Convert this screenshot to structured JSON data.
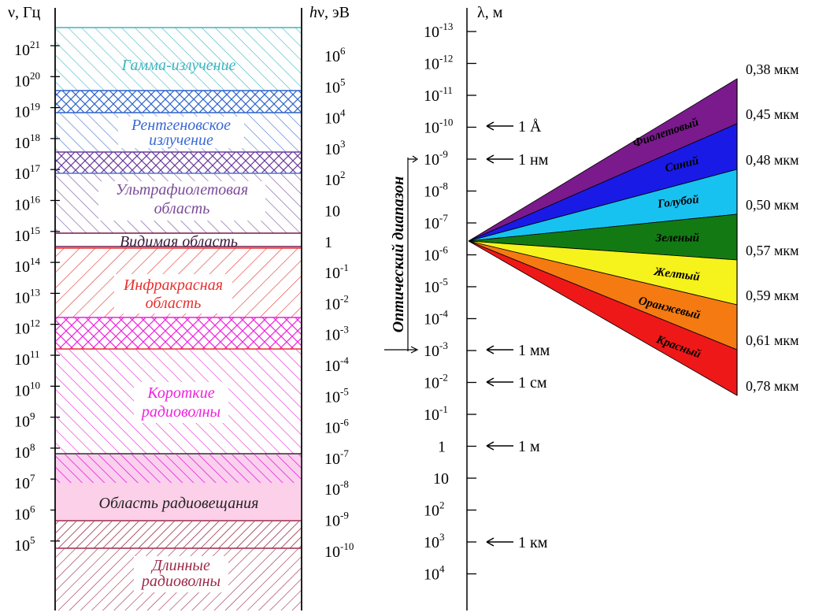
{
  "left_axis": {
    "label": "ν, Гц",
    "ticks": [
      {
        "base": "10",
        "exp": "21"
      },
      {
        "base": "10",
        "exp": "20"
      },
      {
        "base": "10",
        "exp": "19"
      },
      {
        "base": "10",
        "exp": "18"
      },
      {
        "base": "10",
        "exp": "17"
      },
      {
        "base": "10",
        "exp": "16"
      },
      {
        "base": "10",
        "exp": "15"
      },
      {
        "base": "10",
        "exp": "14"
      },
      {
        "base": "10",
        "exp": "13"
      },
      {
        "base": "10",
        "exp": "12"
      },
      {
        "base": "10",
        "exp": "11"
      },
      {
        "base": "10",
        "exp": "10"
      },
      {
        "base": "10",
        "exp": "9"
      },
      {
        "base": "10",
        "exp": "8"
      },
      {
        "base": "10",
        "exp": "7"
      },
      {
        "base": "10",
        "exp": "6"
      },
      {
        "base": "10",
        "exp": "5"
      }
    ]
  },
  "energy_axis": {
    "label_h": "h",
    "label_rest": "ν, эВ",
    "ticks": [
      {
        "base": "10",
        "exp": "6"
      },
      {
        "base": "10",
        "exp": "5"
      },
      {
        "base": "10",
        "exp": "4"
      },
      {
        "base": "10",
        "exp": "3"
      },
      {
        "base": "10",
        "exp": "2"
      },
      {
        "base": "10",
        "exp": ""
      },
      {
        "base": "1",
        "exp": ""
      },
      {
        "base": "10",
        "exp": "-1"
      },
      {
        "base": "10",
        "exp": "-2"
      },
      {
        "base": "10",
        "exp": "-3"
      },
      {
        "base": "10",
        "exp": "-4"
      },
      {
        "base": "10",
        "exp": "-5"
      },
      {
        "base": "10",
        "exp": "-6"
      },
      {
        "base": "10",
        "exp": "-7"
      },
      {
        "base": "10",
        "exp": "-8"
      },
      {
        "base": "10",
        "exp": "-9"
      },
      {
        "base": "10",
        "exp": "-10"
      }
    ]
  },
  "bands": {
    "gamma": [
      "Гамма-излучение"
    ],
    "xray": [
      "Рентгеновское",
      "излучение"
    ],
    "uv": [
      "Ультрафиолетовая",
      "область"
    ],
    "visible": [
      "Видимая область"
    ],
    "ir": [
      "Инфракрасная",
      "область"
    ],
    "short_radio": [
      "Короткие",
      "радиоволны"
    ],
    "broadcast": [
      "Область радиовещания"
    ],
    "long_radio": [
      "Длинные",
      "радиоволны"
    ]
  },
  "band_colors": {
    "gamma": "#3fb6c2",
    "xray": "#4a78d8",
    "uv": "#7a4a9a",
    "visible": "#7a1a4a",
    "ir": "#e8302e",
    "short_radio": "#ee22dd",
    "broadcast": "#fbd0e8",
    "long_radio": "#9b2a4a"
  },
  "wave_axis": {
    "label": "λ, м",
    "ticks": [
      {
        "base": "10",
        "exp": "-13"
      },
      {
        "base": "10",
        "exp": "-12"
      },
      {
        "base": "10",
        "exp": "-11"
      },
      {
        "base": "10",
        "exp": "-10"
      },
      {
        "base": "10",
        "exp": "-9"
      },
      {
        "base": "10",
        "exp": "-8"
      },
      {
        "base": "10",
        "exp": "-7"
      },
      {
        "base": "10",
        "exp": "-6"
      },
      {
        "base": "10",
        "exp": "-5"
      },
      {
        "base": "10",
        "exp": "-4"
      },
      {
        "base": "10",
        "exp": "-3"
      },
      {
        "base": "10",
        "exp": "-2"
      },
      {
        "base": "10",
        "exp": "-1"
      },
      {
        "base": "1",
        "exp": ""
      },
      {
        "base": "10",
        "exp": ""
      },
      {
        "base": "10",
        "exp": "2"
      },
      {
        "base": "10",
        "exp": "3"
      },
      {
        "base": "10",
        "exp": "4"
      }
    ],
    "markers": [
      "1 Å",
      "1 нм",
      "1 мм",
      "1 см",
      "1 м",
      "1 км"
    ],
    "optical_range": "Оптический диапазон"
  },
  "spectrum": {
    "colors": [
      {
        "name": "Фиолетовый",
        "fill": "#7a1a8c"
      },
      {
        "name": "Синий",
        "fill": "#1a1ae6"
      },
      {
        "name": "Голубой",
        "fill": "#18c2f0"
      },
      {
        "name": "Зеленый",
        "fill": "#137a13"
      },
      {
        "name": "Желтый",
        "fill": "#f6f21c"
      },
      {
        "name": "Оранжевый",
        "fill": "#f57a12"
      },
      {
        "name": "Красный",
        "fill": "#ee1818"
      }
    ],
    "wavelengths": [
      "0,38 мкм",
      "0,45 мкм",
      "0,48 мкм",
      "0,50 мкм",
      "0,57 мкм",
      "0,59 мкм",
      "0,61 мкм",
      "0,78 мкм"
    ]
  }
}
